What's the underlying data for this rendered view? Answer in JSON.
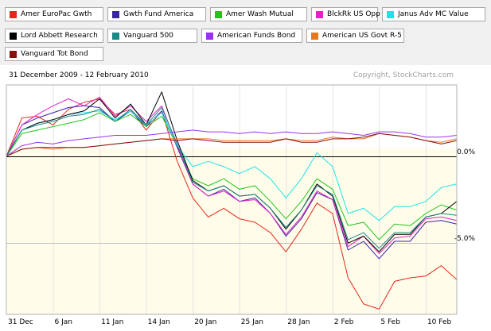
{
  "chart_data": {
    "type": "line",
    "date_range": "31 December 2009 - 12 February 2010",
    "copyright": "Copyright, StockCharts.com",
    "x": [
      "31 Dec",
      "4 Jan",
      "5 Jan",
      "6 Jan",
      "7 Jan",
      "8 Jan",
      "11 Jan",
      "12 Jan",
      "13 Jan",
      "14 Jan",
      "15 Jan",
      "19 Jan",
      "20 Jan",
      "21 Jan",
      "22 Jan",
      "25 Jan",
      "26 Jan",
      "27 Jan",
      "28 Jan",
      "29 Jan",
      "1 Feb",
      "2 Feb",
      "3 Feb",
      "4 Feb",
      "5 Feb",
      "8 Feb",
      "9 Feb",
      "10 Feb",
      "11 Feb",
      "12 Feb"
    ],
    "x_tick_labels": [
      "31 Dec",
      "6 Jan",
      "11 Jan",
      "14 Jan",
      "20 Jan",
      "25 Jan",
      "28 Jan",
      "2 Feb",
      "5 Feb",
      "10 Feb"
    ],
    "y_tick_labels": [
      "0.0%",
      "-5.0%"
    ],
    "y_unit": "%",
    "ylim": [
      -9.1,
      4.1
    ],
    "grid": true,
    "legend_position": "top",
    "series": [
      {
        "name": "Amer EuroPac Gwth",
        "color": "#e8251c",
        "values": [
          0,
          2.2,
          2.3,
          1.8,
          2.7,
          3.1,
          3.3,
          2.4,
          2.7,
          1.5,
          2.6,
          -0.3,
          -2.4,
          -3.5,
          -3.0,
          -3.6,
          -3.8,
          -4.4,
          -5.5,
          -4.2,
          -2.7,
          -3.3,
          -7.0,
          -8.5,
          -8.8,
          -7.2,
          -7.0,
          -6.9,
          -6.3,
          -7.1
        ]
      },
      {
        "name": "Gwth Fund America",
        "color": "#3a23a8",
        "values": [
          0,
          1.8,
          2.2,
          2.5,
          2.8,
          2.9,
          2.8,
          2.0,
          2.6,
          1.7,
          2.6,
          0.5,
          -1.6,
          -2.3,
          -1.9,
          -2.6,
          -2.4,
          -3.3,
          -4.6,
          -3.6,
          -2.1,
          -2.5,
          -5.4,
          -4.9,
          -5.9,
          -4.9,
          -4.9,
          -3.8,
          -3.7,
          -3.9
        ]
      },
      {
        "name": "Amer Wash Mutual",
        "color": "#22c41e",
        "values": [
          0,
          1.3,
          1.5,
          1.7,
          1.9,
          2.1,
          2.5,
          2.0,
          2.4,
          1.7,
          2.3,
          0.6,
          -1.3,
          -1.7,
          -1.3,
          -1.9,
          -1.7,
          -2.6,
          -3.6,
          -2.6,
          -1.3,
          -1.9,
          -4.0,
          -3.8,
          -4.8,
          -3.9,
          -4.0,
          -3.3,
          -2.8,
          -3.1
        ]
      },
      {
        "name": "BlckRk US Opp",
        "color": "#e620c8",
        "values": [
          0,
          1.8,
          2.4,
          2.9,
          3.3,
          2.9,
          3.4,
          2.3,
          2.9,
          2.0,
          2.9,
          0.6,
          -1.6,
          -2.3,
          -2.0,
          -2.6,
          -2.5,
          -3.3,
          -4.5,
          -3.5,
          -2.0,
          -2.5,
          -5.2,
          -4.6,
          -5.6,
          -4.7,
          -4.6,
          -3.6,
          -3.5,
          -3.7
        ]
      },
      {
        "name": "Janus Adv MC Value",
        "color": "#22e0e8",
        "values": [
          0,
          1.5,
          1.9,
          2.1,
          2.4,
          2.5,
          2.6,
          2.1,
          2.6,
          1.8,
          2.5,
          0.6,
          -0.6,
          -0.3,
          -0.6,
          -1.0,
          -0.6,
          -1.3,
          -2.4,
          -1.3,
          0.2,
          -0.6,
          -3.3,
          -3.0,
          -3.7,
          -2.9,
          -2.9,
          -2.6,
          -1.8,
          -1.6
        ]
      },
      {
        "name": "Lord Abbett Research",
        "color": "#000000",
        "values": [
          0,
          1.5,
          1.9,
          2.1,
          2.4,
          2.6,
          3.3,
          2.2,
          3.0,
          1.8,
          3.7,
          0.9,
          -1.4,
          -2.0,
          -1.7,
          -2.3,
          -2.2,
          -3.0,
          -4.2,
          -3.1,
          -1.6,
          -2.3,
          -5.0,
          -4.6,
          -5.5,
          -4.5,
          -4.5,
          -3.5,
          -3.3,
          -2.6
        ]
      },
      {
        "name": "Vanguard 500",
        "color": "#188a8a",
        "values": [
          0,
          1.5,
          1.8,
          2.0,
          2.3,
          2.4,
          2.7,
          2.0,
          2.7,
          1.8,
          2.8,
          0.7,
          -1.5,
          -2.0,
          -1.7,
          -2.3,
          -2.2,
          -3.0,
          -4.1,
          -3.1,
          -1.7,
          -2.2,
          -4.8,
          -4.4,
          -5.3,
          -4.4,
          -4.4,
          -3.5,
          -3.3,
          -3.4
        ]
      },
      {
        "name": "American Funds Bond",
        "color": "#9a32e8",
        "values": [
          0,
          0.6,
          0.8,
          0.7,
          0.9,
          1.0,
          1.1,
          1.2,
          1.2,
          1.2,
          1.3,
          1.4,
          1.5,
          1.4,
          1.4,
          1.3,
          1.4,
          1.3,
          1.4,
          1.3,
          1.3,
          1.4,
          1.3,
          1.2,
          1.4,
          1.4,
          1.3,
          1.1,
          1.1,
          1.2
        ]
      },
      {
        "name": "American US Govt R-5",
        "color": "#e8781c",
        "values": [
          0,
          0.4,
          0.5,
          0.4,
          0.5,
          0.5,
          0.6,
          0.7,
          0.8,
          0.9,
          1.0,
          1.0,
          1.0,
          1.0,
          0.9,
          0.9,
          0.9,
          0.9,
          1.0,
          0.9,
          0.9,
          1.1,
          1.0,
          1.0,
          1.3,
          1.2,
          1.1,
          0.9,
          0.8,
          1.0
        ]
      },
      {
        "name": "Vanguard Tot Bond",
        "color": "#8a1010",
        "values": [
          0,
          0.4,
          0.5,
          0.5,
          0.5,
          0.5,
          0.6,
          0.7,
          0.8,
          0.9,
          1.0,
          0.9,
          1.0,
          0.9,
          0.8,
          0.8,
          0.8,
          0.8,
          1.0,
          0.8,
          0.8,
          1.0,
          1.0,
          1.1,
          1.3,
          1.2,
          1.1,
          0.9,
          0.7,
          0.9
        ]
      }
    ]
  }
}
